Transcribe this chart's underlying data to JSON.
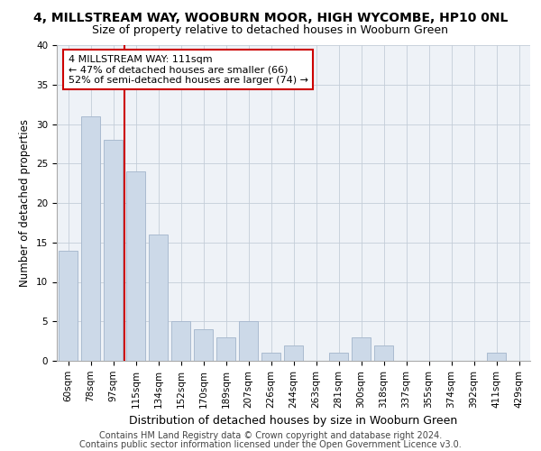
{
  "title": "4, MILLSTREAM WAY, WOOBURN MOOR, HIGH WYCOMBE, HP10 0NL",
  "subtitle": "Size of property relative to detached houses in Wooburn Green",
  "xlabel": "Distribution of detached houses by size in Wooburn Green",
  "ylabel": "Number of detached properties",
  "categories": [
    "60sqm",
    "78sqm",
    "97sqm",
    "115sqm",
    "134sqm",
    "152sqm",
    "170sqm",
    "189sqm",
    "207sqm",
    "226sqm",
    "244sqm",
    "263sqm",
    "281sqm",
    "300sqm",
    "318sqm",
    "337sqm",
    "355sqm",
    "374sqm",
    "392sqm",
    "411sqm",
    "429sqm"
  ],
  "values": [
    14,
    31,
    28,
    24,
    16,
    5,
    4,
    3,
    5,
    1,
    2,
    0,
    1,
    3,
    2,
    0,
    0,
    0,
    0,
    1,
    0
  ],
  "bar_color": "#ccd9e8",
  "bar_edgecolor": "#aabbd0",
  "vline_color": "#cc0000",
  "annotation_text": "4 MILLSTREAM WAY: 111sqm\n← 47% of detached houses are smaller (66)\n52% of semi-detached houses are larger (74) →",
  "annotation_box_color": "#cc0000",
  "ylim": [
    0,
    40
  ],
  "yticks": [
    0,
    5,
    10,
    15,
    20,
    25,
    30,
    35,
    40
  ],
  "footer_line1": "Contains HM Land Registry data © Crown copyright and database right 2024.",
  "footer_line2": "Contains public sector information licensed under the Open Government Licence v3.0.",
  "bg_color": "#eef2f7",
  "title_fontsize": 10,
  "subtitle_fontsize": 9,
  "xlabel_fontsize": 9,
  "ylabel_fontsize": 8.5,
  "tick_fontsize": 7.5,
  "annotation_fontsize": 8,
  "footer_fontsize": 7
}
